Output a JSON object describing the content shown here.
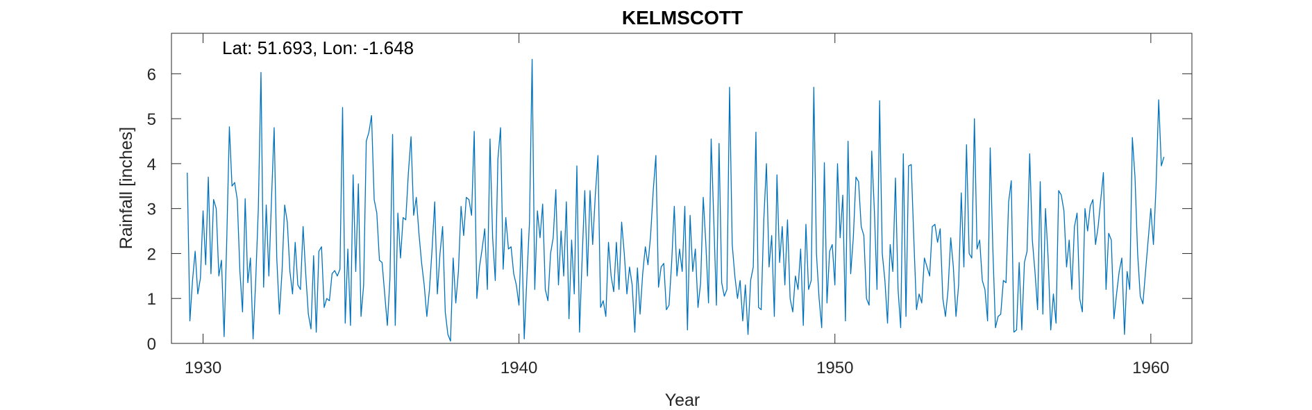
{
  "chart_data": {
    "type": "line",
    "title": "KELMSCOTT",
    "annotation": "Lat: 51.693, Lon: -1.648",
    "xlabel": "Year",
    "ylabel": "Rainfall [inches]",
    "xlim": [
      1929,
      1961.3
    ],
    "ylim": [
      0,
      6.9
    ],
    "xticks": [
      1930,
      1940,
      1950,
      1960
    ],
    "yticks": [
      0,
      1,
      2,
      3,
      4,
      5,
      6
    ],
    "grid": false,
    "series_color": "#0072BD",
    "series": [
      {
        "x_start": 1929.5,
        "x_step": 0.08333,
        "values": [
          3.8,
          0.5,
          1.4,
          2.05,
          1.1,
          1.45,
          2.95,
          1.75,
          3.7,
          1.55,
          3.2,
          3.0,
          1.5,
          1.85,
          0.15,
          2.3,
          4.82,
          3.5,
          3.58,
          3.2,
          1.6,
          0.7,
          3.22,
          1.35,
          1.9,
          0.1,
          1.4,
          3.0,
          6.03,
          1.25,
          3.08,
          1.5,
          3.2,
          4.8,
          1.9,
          0.65,
          1.6,
          3.08,
          2.7,
          1.6,
          1.1,
          2.25,
          1.3,
          1.2,
          2.6,
          1.55,
          0.65,
          0.32,
          1.95,
          0.25,
          2.05,
          2.15,
          0.8,
          1.0,
          0.95,
          1.55,
          1.62,
          1.5,
          1.65,
          5.25,
          0.45,
          2.1,
          0.4,
          3.75,
          1.6,
          3.55,
          0.6,
          1.3,
          4.5,
          4.7,
          5.07,
          3.2,
          2.9,
          1.85,
          1.8,
          1.1,
          0.4,
          1.45,
          4.65,
          0.4,
          2.9,
          1.9,
          2.8,
          2.75,
          3.8,
          4.6,
          2.85,
          3.25,
          2.45,
          1.8,
          1.3,
          0.6,
          1.2,
          2.1,
          3.15,
          1.1,
          2.0,
          2.6,
          0.7,
          0.2,
          0.05,
          1.9,
          0.9,
          1.6,
          3.05,
          2.4,
          3.25,
          3.2,
          2.85,
          4.72,
          1.0,
          1.7,
          2.1,
          2.55,
          1.2,
          4.55,
          2.35,
          1.4,
          4.1,
          4.8,
          1.65,
          2.8,
          2.1,
          2.15,
          1.55,
          1.3,
          0.85,
          2.55,
          0.1,
          1.45,
          2.7,
          6.32,
          1.2,
          2.95,
          2.35,
          3.1,
          1.2,
          0.95,
          2.0,
          2.35,
          3.42,
          1.3,
          2.5,
          1.5,
          3.15,
          0.55,
          2.3,
          1.1,
          3.95,
          0.25,
          1.9,
          3.4,
          1.5,
          3.4,
          2.2,
          3.3,
          4.18,
          0.8,
          0.95,
          0.6,
          2.25,
          1.5,
          1.15,
          2.25,
          1.2,
          2.7,
          2.0,
          1.1,
          1.7,
          1.3,
          0.25,
          1.68,
          0.65,
          1.55,
          2.15,
          1.75,
          2.4,
          3.4,
          4.18,
          1.25,
          1.7,
          1.78,
          0.75,
          0.85,
          1.8,
          3.05,
          1.5,
          2.1,
          1.6,
          3.05,
          0.3,
          2.85,
          1.6,
          2.1,
          0.8,
          1.35,
          3.25,
          2.2,
          0.9,
          4.55,
          2.75,
          0.85,
          4.45,
          1.35,
          1.05,
          1.2,
          5.7,
          2.2,
          1.5,
          1.0,
          1.4,
          0.5,
          1.3,
          0.2,
          1.4,
          1.7,
          4.7,
          0.8,
          0.75,
          2.75,
          4.0,
          1.7,
          2.4,
          0.6,
          3.75,
          1.8,
          2.6,
          1.3,
          2.75,
          1.0,
          0.7,
          1.5,
          1.2,
          2.1,
          0.4,
          2.65,
          1.2,
          1.4,
          5.7,
          2.0,
          1.0,
          0.35,
          4.02,
          0.9,
          2.05,
          2.2,
          1.3,
          4.0,
          2.35,
          3.3,
          0.5,
          4.5,
          1.55,
          2.35,
          3.7,
          3.6,
          2.6,
          2.4,
          1.0,
          0.85,
          4.28,
          2.95,
          1.2,
          5.4,
          2.0,
          1.4,
          0.45,
          2.2,
          1.6,
          3.68,
          1.2,
          0.35,
          4.22,
          0.6,
          3.95,
          3.98,
          2.3,
          0.75,
          1.1,
          0.9,
          1.9,
          1.7,
          1.5,
          2.6,
          2.65,
          2.25,
          2.55,
          1.0,
          0.6,
          1.2,
          2.35,
          1.7,
          0.6,
          1.3,
          3.35,
          1.7,
          4.42,
          2.0,
          1.9,
          5.0,
          2.1,
          2.3,
          1.4,
          1.2,
          0.5,
          4.35,
          2.1,
          0.35,
          0.6,
          0.65,
          1.4,
          1.35,
          3.15,
          3.62,
          0.25,
          0.3,
          1.8,
          0.3,
          1.8,
          2.05,
          4.22,
          2.3,
          1.6,
          0.75,
          3.6,
          0.65,
          3.0,
          1.9,
          0.3,
          1.1,
          0.45,
          3.4,
          3.3,
          2.95,
          1.7,
          2.3,
          1.2,
          2.6,
          2.9,
          1.0,
          0.7,
          3.0,
          2.5,
          3.05,
          3.2,
          2.2,
          2.6,
          3.2,
          3.8,
          1.2,
          2.45,
          2.3,
          0.55,
          1.1,
          1.6,
          1.9,
          0.2,
          1.6,
          1.2,
          4.58,
          3.7,
          2.0,
          1.05,
          0.88,
          1.6,
          2.3,
          3.0,
          2.2,
          3.5,
          5.42,
          3.95,
          4.15
        ]
      }
    ]
  }
}
